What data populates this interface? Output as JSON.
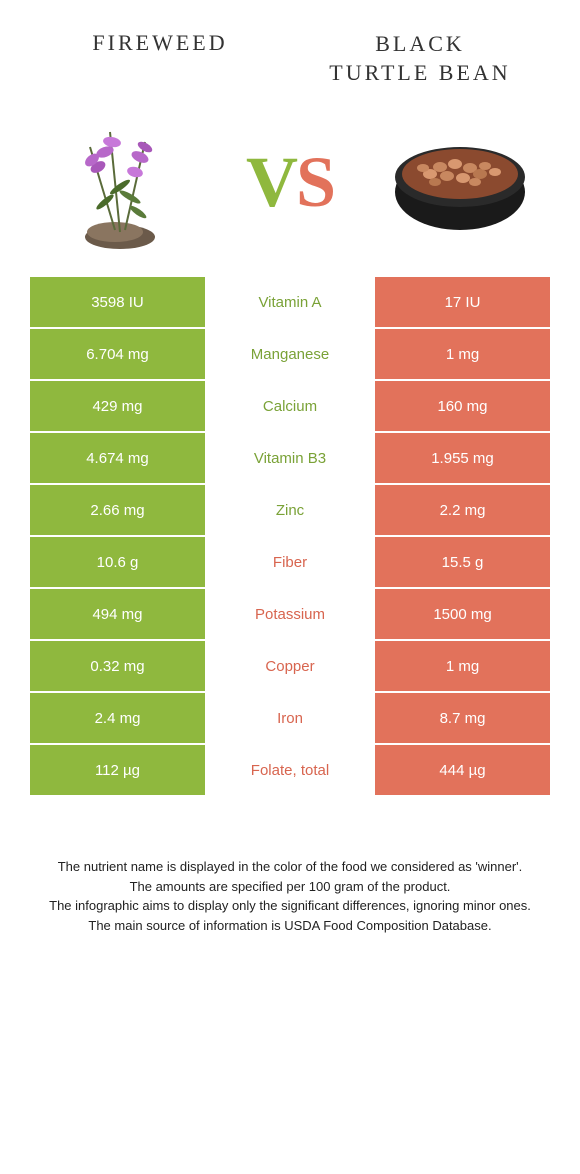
{
  "header": {
    "left": "Fireweed",
    "right_line1": "Black",
    "right_line2": "turtle bean"
  },
  "vs": {
    "v": "V",
    "s": "S"
  },
  "colors": {
    "green": "#8fb83e",
    "orange": "#e2725b",
    "green_text": "#7aa237",
    "orange_text": "#d8654f"
  },
  "rows": [
    {
      "left": "3598 IU",
      "mid": "Vitamin A",
      "right": "17 IU",
      "winner": "left"
    },
    {
      "left": "6.704 mg",
      "mid": "Manganese",
      "right": "1 mg",
      "winner": "left"
    },
    {
      "left": "429 mg",
      "mid": "Calcium",
      "right": "160 mg",
      "winner": "left"
    },
    {
      "left": "4.674 mg",
      "mid": "Vitamin B3",
      "right": "1.955 mg",
      "winner": "left"
    },
    {
      "left": "2.66 mg",
      "mid": "Zinc",
      "right": "2.2 mg",
      "winner": "left"
    },
    {
      "left": "10.6 g",
      "mid": "Fiber",
      "right": "15.5 g",
      "winner": "right"
    },
    {
      "left": "494 mg",
      "mid": "Potassium",
      "right": "1500 mg",
      "winner": "right"
    },
    {
      "left": "0.32 mg",
      "mid": "Copper",
      "right": "1 mg",
      "winner": "right"
    },
    {
      "left": "2.4 mg",
      "mid": "Iron",
      "right": "8.7 mg",
      "winner": "right"
    },
    {
      "left": "112 µg",
      "mid": "Folate, total",
      "right": "444 µg",
      "winner": "right"
    }
  ],
  "footer": {
    "l1": "The nutrient name is displayed in the color of the food we considered as 'winner'.",
    "l2": "The amounts are specified per 100 gram of the product.",
    "l3": "The infographic aims to display only the significant differences, ignoring minor ones.",
    "l4": "The main source of information is USDA Food Composition Database."
  }
}
